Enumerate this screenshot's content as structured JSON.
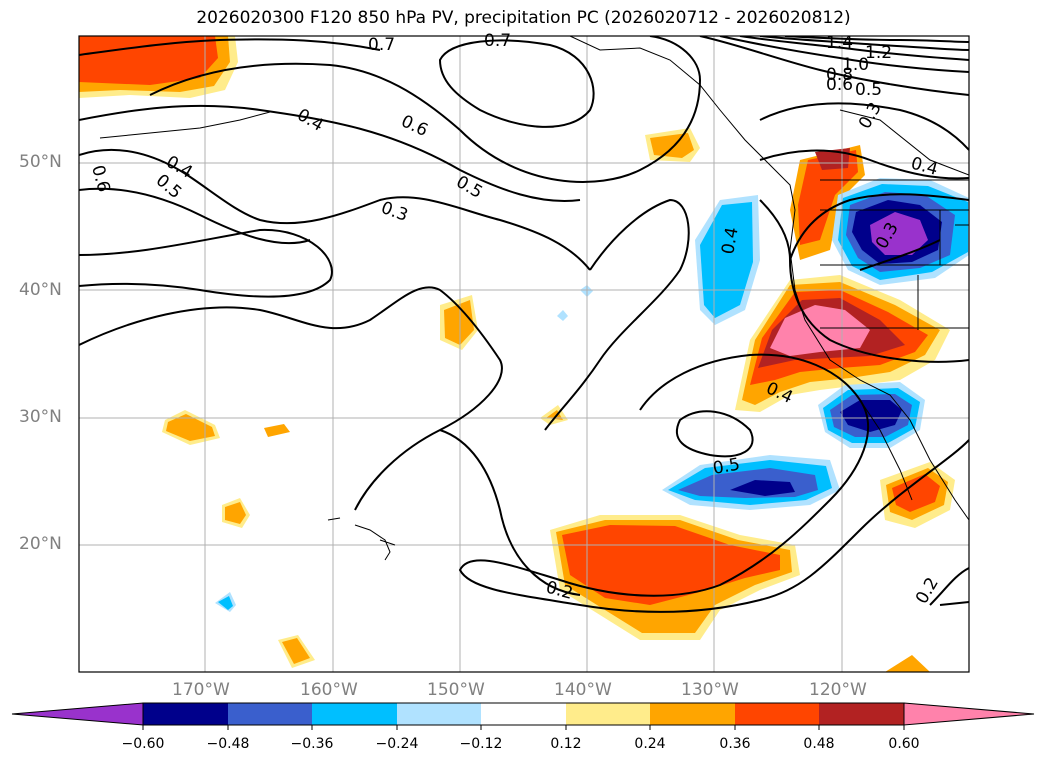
{
  "title": "2026020300 F120 850 hPa PV, precipitation PC (2026020712 - 2026020812)",
  "map": {
    "lon_labels": [
      "170°W",
      "160°W",
      "150°W",
      "140°W",
      "130°W",
      "120°W"
    ],
    "lat_labels": [
      "50°N",
      "40°N",
      "30°N",
      "20°N"
    ],
    "contour_labels": [
      "0.7",
      "0.7",
      "0.4",
      "0.6",
      "0.5",
      "0.3",
      "0.4",
      "0.5",
      "0.6",
      "1.4",
      "1.2",
      "1.0",
      "0.8",
      "0.6",
      "0.5",
      "0.3",
      "0.4",
      "0.4",
      "0.3",
      "0.4",
      "0.5",
      "0.2",
      "0.2"
    ]
  },
  "colorbar": {
    "ticks": [
      "−0.60",
      "−0.48",
      "−0.36",
      "−0.24",
      "−0.12",
      "0.12",
      "0.24",
      "0.36",
      "0.48",
      "0.60"
    ],
    "colors": [
      "#9932cc",
      "#00008b",
      "#3a5fcd",
      "#00bfff",
      "#b0e2ff",
      "#ffffff",
      "#ffec8b",
      "#ffa500",
      "#ff4500",
      "#b22222",
      "#ff82ab"
    ]
  }
}
